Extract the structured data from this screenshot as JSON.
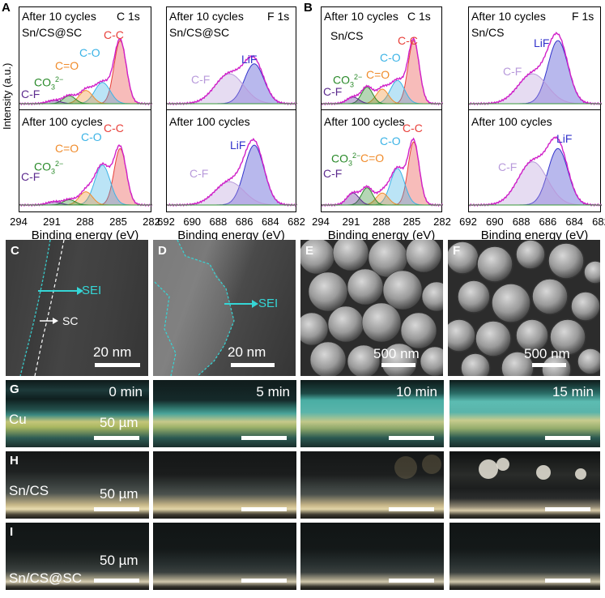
{
  "xps": {
    "y_axis_label": "Intensity (a.u.)",
    "x_axis_label": "Binding energy (eV)",
    "panel_letters": [
      "A",
      "B"
    ],
    "c1s_ticks": [
      "294",
      "291",
      "288",
      "285",
      "282"
    ],
    "f1s_ticks": [
      "692",
      "690",
      "688",
      "686",
      "684",
      "682"
    ],
    "panels": [
      {
        "top_cycle": "After 10 cycles",
        "bottom_cycle": "After 100 cycles",
        "element": "C 1s",
        "sample": "Sn/CS@SC",
        "peaks": {
          "cc": "C-C",
          "co": "C-O",
          "ceo": "C=O",
          "co3": "CO",
          "co3_sup": "2−",
          "co3_sub": "3",
          "cf": "C-F"
        }
      },
      {
        "top_cycle": "After 10 cycles",
        "bottom_cycle": "After 100 cycles",
        "element": "F 1s",
        "sample": "Sn/CS@SC",
        "peaks": {
          "lif": "LiF",
          "cf": "C-F"
        }
      },
      {
        "top_cycle": "After 10 cycles",
        "bottom_cycle": "After 100 cycles",
        "element": "C 1s",
        "sample": "Sn/CS",
        "peaks": {
          "cc": "C-C",
          "co": "C-O",
          "ceo": "C=O",
          "co3": "CO",
          "co3_sup": "2−",
          "co3_sub": "3",
          "cf": "C-F"
        }
      },
      {
        "top_cycle": "After 10 cycles",
        "bottom_cycle": "After 100 cycles",
        "element": "F 1s",
        "sample": "Sn/CS",
        "peaks": {
          "lif": "LiF",
          "cf": "C-F"
        }
      }
    ],
    "colors": {
      "cc": "#e8403a",
      "co": "#3bb3e6",
      "ceo": "#f08c2c",
      "co3": "#2a8a2a",
      "cf": "#5c2b8e",
      "lif": "#3333cc",
      "fcf": "#b89adb",
      "envelope": "#d020c8"
    }
  },
  "micrographs": [
    {
      "letter": "C",
      "scale": "20 nm",
      "sei": "SEI",
      "sc": "SC"
    },
    {
      "letter": "D",
      "scale": "20 nm",
      "sei": "SEI"
    },
    {
      "letter": "E",
      "scale": "500 nm"
    },
    {
      "letter": "F",
      "scale": "500 nm"
    }
  ],
  "optical": {
    "rows": [
      {
        "letter": "G",
        "sample": "Cu",
        "scale": "50 µm"
      },
      {
        "letter": "H",
        "sample": "Sn/CS",
        "scale": "50 µm"
      },
      {
        "letter": "I",
        "sample": "Sn/CS@SC",
        "scale": "50 µm"
      }
    ],
    "times": [
      "0 min",
      "5 min",
      "10 min",
      "15 min"
    ]
  }
}
